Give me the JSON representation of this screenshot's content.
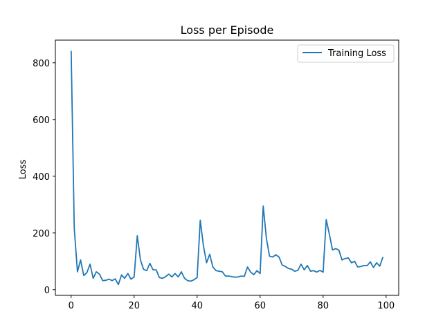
{
  "chart_data": {
    "type": "line",
    "title": "Loss per Episode",
    "xlabel": "",
    "ylabel": "Loss",
    "xlim": [
      -5,
      104
    ],
    "ylim": [
      -20,
      880
    ],
    "xticks": [
      0,
      20,
      40,
      60,
      80,
      100
    ],
    "yticks": [
      0,
      200,
      400,
      600,
      800
    ],
    "grid": false,
    "legend_position": "top-right",
    "series": [
      {
        "name": "Training Loss",
        "color": "#1f77b4",
        "x": [
          0,
          1,
          2,
          3,
          4,
          5,
          6,
          7,
          8,
          9,
          10,
          11,
          12,
          13,
          14,
          15,
          16,
          17,
          18,
          19,
          20,
          21,
          22,
          23,
          24,
          25,
          26,
          27,
          28,
          29,
          30,
          31,
          32,
          33,
          34,
          35,
          36,
          37,
          38,
          39,
          40,
          41,
          42,
          43,
          44,
          45,
          46,
          47,
          48,
          49,
          50,
          51,
          52,
          53,
          54,
          55,
          56,
          57,
          58,
          59,
          60,
          61,
          62,
          63,
          64,
          65,
          66,
          67,
          68,
          69,
          70,
          71,
          72,
          73,
          74,
          75,
          76,
          77,
          78,
          79,
          80,
          81,
          82,
          83,
          84,
          85,
          86,
          87,
          88,
          89,
          90,
          91,
          92,
          93,
          94,
          95,
          96,
          97,
          98,
          99
        ],
        "values": [
          842,
          215,
          63,
          105,
          50,
          60,
          90,
          40,
          63,
          55,
          32,
          33,
          37,
          32,
          38,
          18,
          52,
          40,
          57,
          37,
          45,
          190,
          105,
          72,
          67,
          93,
          70,
          70,
          43,
          40,
          46,
          55,
          45,
          57,
          45,
          63,
          40,
          32,
          30,
          35,
          43,
          245,
          155,
          95,
          125,
          80,
          67,
          65,
          63,
          48,
          48,
          46,
          44,
          45,
          48,
          47,
          80,
          62,
          53,
          67,
          57,
          295,
          180,
          118,
          115,
          123,
          115,
          87,
          82,
          75,
          72,
          65,
          68,
          90,
          70,
          85,
          65,
          67,
          62,
          68,
          62,
          247,
          195,
          140,
          145,
          140,
          105,
          110,
          112,
          95,
          100,
          80,
          82,
          85,
          85,
          98,
          78,
          95,
          83,
          115
        ]
      }
    ]
  }
}
